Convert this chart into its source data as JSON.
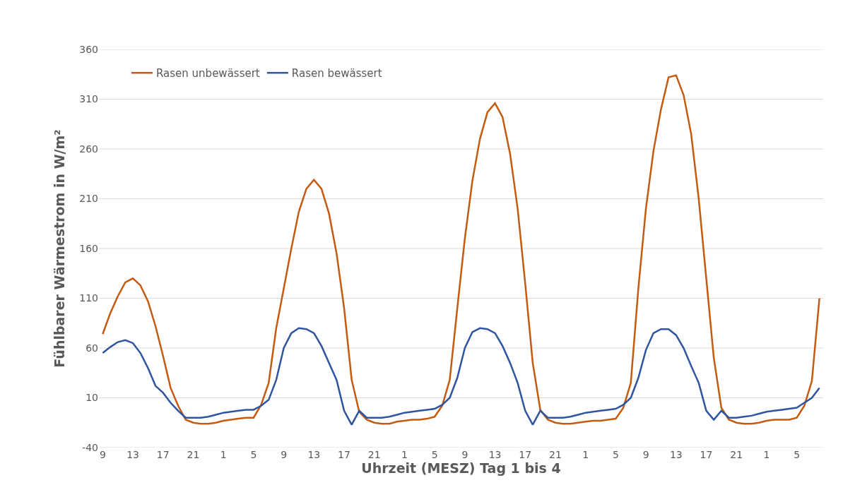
{
  "chart_data": {
    "type": "line",
    "xlabel": "Uhrzeit (MESZ) Tag 1 bis 4",
    "ylabel": "Fühlbarer Wärmestrom in W/m²",
    "categories": [
      "9",
      null,
      null,
      null,
      "13",
      null,
      null,
      null,
      "17",
      null,
      null,
      null,
      "21",
      null,
      null,
      null,
      "1",
      null,
      null,
      null,
      "5",
      null,
      null,
      null,
      "9",
      null,
      null,
      null,
      "13",
      null,
      null,
      null,
      "17",
      null,
      null,
      null,
      "21",
      null,
      null,
      null,
      "1",
      null,
      null,
      null,
      "5",
      null,
      null,
      null,
      "9",
      null,
      null,
      null,
      "13",
      null,
      null,
      null,
      "17",
      null,
      null,
      null,
      "21",
      null,
      null,
      null,
      "1",
      null,
      null,
      null,
      "5",
      null,
      null,
      null,
      "9",
      null,
      null,
      null,
      "13",
      null,
      null,
      null,
      "17",
      null,
      null,
      null,
      "21",
      null,
      null,
      null,
      "1",
      null,
      null,
      null,
      "5",
      null,
      null,
      null
    ],
    "series": [
      {
        "name": "Rasen unbewässert",
        "color": "#c55a11",
        "values": [
          74,
          95,
          112,
          126,
          130,
          123,
          107,
          82,
          52,
          20,
          2,
          -12,
          -15,
          -16,
          -16,
          -15,
          -13,
          -12,
          -11,
          -10,
          -10,
          3,
          25,
          80,
          120,
          160,
          197,
          220,
          229,
          220,
          195,
          155,
          100,
          28,
          -4,
          -12,
          -15,
          -16,
          -16,
          -14,
          -13,
          -12,
          -12,
          -11,
          -9,
          2,
          28,
          100,
          170,
          228,
          270,
          297,
          306,
          292,
          255,
          200,
          125,
          45,
          -2,
          -12,
          -15,
          -16,
          -16,
          -15,
          -14,
          -13,
          -13,
          -12,
          -11,
          0,
          25,
          120,
          200,
          258,
          300,
          332,
          334,
          314,
          275,
          210,
          130,
          50,
          0,
          -12,
          -15,
          -16,
          -16,
          -15,
          -13,
          -12,
          -12,
          -12,
          -10,
          2,
          27,
          110
        ]
      },
      {
        "name": "Rasen bewässert",
        "color": "#2f54a0",
        "values": [
          55,
          61,
          66,
          68,
          65,
          55,
          40,
          22,
          15,
          5,
          -3,
          -10,
          -10,
          -10,
          -9,
          -7,
          -5,
          -4,
          -3,
          -2,
          -2,
          2,
          8,
          28,
          60,
          75,
          80,
          79,
          75,
          62,
          45,
          28,
          -3,
          -17,
          -3,
          -10,
          -10,
          -10,
          -9,
          -7,
          -5,
          -4,
          -3,
          -2,
          -1,
          3,
          10,
          30,
          60,
          76,
          80,
          79,
          75,
          62,
          45,
          25,
          -3,
          -17,
          -3,
          -10,
          -10,
          -10,
          -9,
          -7,
          -5,
          -4,
          -3,
          -2,
          -1,
          3,
          10,
          30,
          58,
          75,
          79,
          79,
          73,
          60,
          42,
          25,
          -3,
          -12,
          -3,
          -10,
          -10,
          -9,
          -8,
          -6,
          -4,
          -3,
          -2,
          -1,
          0,
          5,
          10,
          20
        ]
      }
    ],
    "ylim": [
      -40,
      360
    ],
    "yticks": [
      -40,
      10,
      60,
      110,
      160,
      210,
      260,
      310,
      360
    ],
    "grid": "y",
    "legend": "top left",
    "marker": "none",
    "line_style": "solid"
  }
}
